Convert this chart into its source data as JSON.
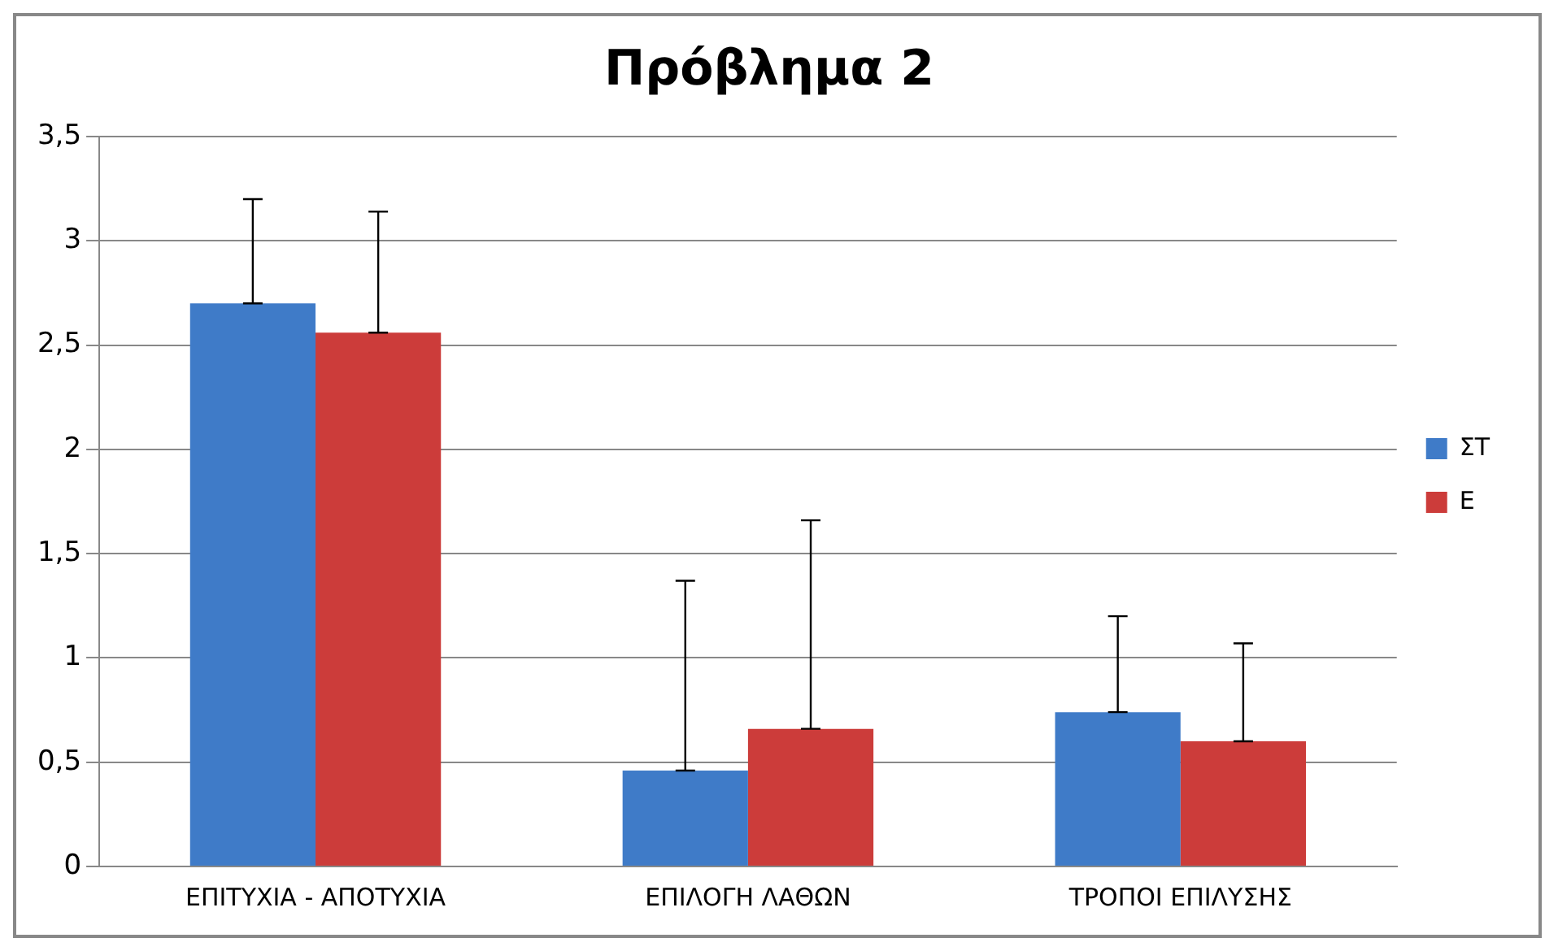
{
  "chart_data": {
    "type": "bar",
    "title": "Πρόβλημα 2",
    "categories": [
      "ΕΠΙΤΥΧΙΑ - ΑΠΟΤΥΧΙΑ",
      "ΕΠΙΛΟΓΗ ΛΑΘΩΝ",
      "ΤΡΟΠΟΙ ΕΠΙΛΥΣΗΣ"
    ],
    "series": [
      {
        "name": "ΣΤ",
        "color": "#3f7bc8",
        "values": [
          2.7,
          0.46,
          0.74
        ],
        "errors": [
          [
            2.7,
            3.2
          ],
          [
            0.46,
            1.37
          ],
          [
            0.74,
            1.2
          ]
        ]
      },
      {
        "name": "Ε",
        "color": "#cc3c3a",
        "values": [
          2.56,
          0.66,
          0.6
        ],
        "errors": [
          [
            2.56,
            3.14
          ],
          [
            0.66,
            1.66
          ],
          [
            0.6,
            1.07
          ]
        ]
      }
    ],
    "ylim": [
      0,
      3.5
    ],
    "yticks": [
      {
        "value": 0,
        "label": "0"
      },
      {
        "value": 0.5,
        "label": "0,5"
      },
      {
        "value": 1,
        "label": "1"
      },
      {
        "value": 1.5,
        "label": "1,5"
      },
      {
        "value": 2,
        "label": "2"
      },
      {
        "value": 2.5,
        "label": "2,5"
      },
      {
        "value": 3,
        "label": "3"
      },
      {
        "value": 3.5,
        "label": "3,5"
      }
    ],
    "grid": "y",
    "legend": "right"
  }
}
